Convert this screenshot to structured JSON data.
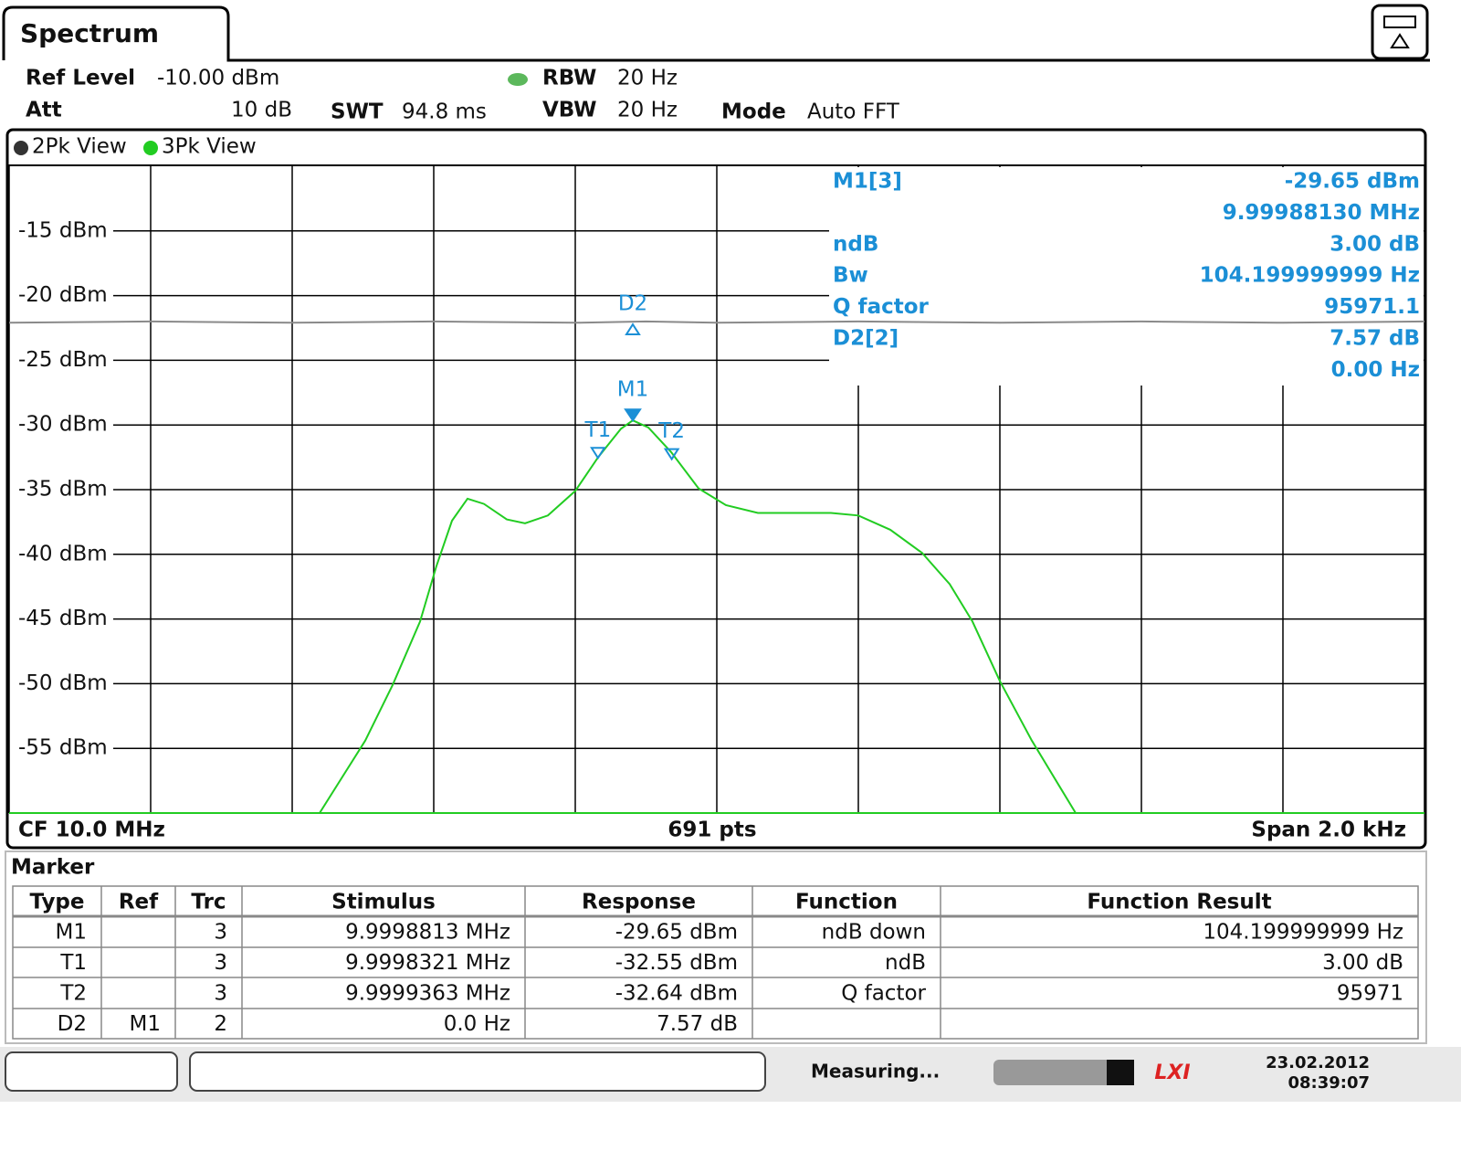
{
  "header": {
    "tab": "Spectrum"
  },
  "settings": [
    {
      "label": "Ref Level",
      "value": "-10.00 dBm"
    },
    {
      "label": "Att",
      "value": "10 dB"
    },
    {
      "label": "SWT",
      "value": "94.8 ms"
    },
    {
      "label": "RBW",
      "value": "20 Hz"
    },
    {
      "label": "VBW",
      "value": "20 Hz"
    },
    {
      "label": "Mode",
      "value": "Auto FFT"
    }
  ],
  "chart_data": {
    "type": "line",
    "series": [
      {
        "name": "2Pk View",
        "color": "#8a8a8a",
        "x": [
          9.999,
          9.9992,
          9.9994,
          9.9996,
          9.9998,
          9.9999,
          10.0,
          10.0002,
          10.0004,
          10.0006,
          10.0008,
          10.001
        ],
        "values": [
          -22.1,
          -22.0,
          -22.1,
          -22.0,
          -22.1,
          -22.0,
          -22.1,
          -22.0,
          -22.1,
          -22.0,
          -22.1,
          -22.0
        ]
      },
      {
        "name": "3Pk View",
        "color": "#22cc22",
        "x": [
          9.9994387,
          9.9995032,
          9.9995419,
          9.9995806,
          9.9996039,
          9.9996258,
          9.9996477,
          9.999671,
          9.9997032,
          9.999729,
          9.9997613,
          9.9998,
          9.9998323,
          9.9998645,
          9.9998813,
          9.9999032,
          9.9999355,
          9.9999742,
          10.0000129,
          10.0000581,
          10.0001097,
          10.0001613,
          10.0002,
          10.0002452,
          10.0002903,
          10.000329,
          10.0003613,
          10.0004,
          10.0004452,
          10.0004839,
          10.0005071
        ],
        "values": [
          -60,
          -54.4,
          -50.1,
          -45.2,
          -40.9,
          -37.4,
          -35.7,
          -36.1,
          -37.3,
          -37.6,
          -37.0,
          -35.1,
          -32.5,
          -30.3,
          -29.65,
          -30.2,
          -32.1,
          -34.9,
          -36.2,
          -36.8,
          -36.8,
          -36.8,
          -37.0,
          -38.1,
          -39.9,
          -42.3,
          -45.2,
          -49.8,
          -54.4,
          -57.9,
          -60
        ]
      }
    ],
    "markers": [
      {
        "name": "M1",
        "x": 9.9998813,
        "y": -29.65
      },
      {
        "name": "T1",
        "x": 9.9998321,
        "y": -32.55
      },
      {
        "name": "T2",
        "x": 9.9999363,
        "y": -32.64
      },
      {
        "name": "D2",
        "x": 9.9998813,
        "y": -22.08
      }
    ],
    "xlim": [
      9.999,
      10.001
    ],
    "xticks": [
      9.999,
      9.9992,
      9.9994,
      9.9996,
      9.9998,
      10.0,
      10.0002,
      10.0004,
      10.0006,
      10.0008,
      10.001
    ],
    "ylim": [
      -60,
      -10
    ],
    "yticks": [
      {
        "value": -15,
        "label": "-15 dBm"
      },
      {
        "value": -20,
        "label": "-20 dBm"
      },
      {
        "value": -25,
        "label": "-25 dBm"
      },
      {
        "value": -30,
        "label": "-30 dBm"
      },
      {
        "value": -35,
        "label": "-35 dBm"
      },
      {
        "value": -40,
        "label": "-40 dBm"
      },
      {
        "value": -45,
        "label": "-45 dBm"
      },
      {
        "value": -50,
        "label": "-50 dBm"
      },
      {
        "value": -55,
        "label": "-55 dBm"
      }
    ],
    "grid": true,
    "marker_info": [
      [
        "M1[3]",
        "-29.65 dBm"
      ],
      [
        null,
        "9.99988130 MHz"
      ],
      [
        "ndB",
        "3.00 dB"
      ],
      [
        "Bw",
        "104.199999999 Hz"
      ],
      [
        "Q factor",
        "95971.1"
      ],
      [
        "D2[2]",
        "7.57 dB"
      ],
      [
        null,
        "0.00 Hz"
      ]
    ],
    "footer": {
      "left": "CF 10.0 MHz",
      "center": "691 pts",
      "right": "Span 2.0 kHz"
    }
  },
  "table": {
    "title": "Marker",
    "headers": [
      "Type",
      "Ref",
      "Trc",
      "Stimulus",
      "Response",
      "Function",
      "Function Result"
    ],
    "rows": [
      [
        "M1",
        null,
        "3",
        "9.9998813 MHz",
        "-29.65 dBm",
        "ndB down",
        "104.199999999 Hz"
      ],
      [
        "T1",
        null,
        "3",
        "9.9998321 MHz",
        "-32.55 dBm",
        "ndB",
        "3.00 dB"
      ],
      [
        "T2",
        null,
        "3",
        "9.9999363 MHz",
        "-32.64 dBm",
        "Q factor",
        "95971"
      ],
      [
        "D2",
        "M1",
        "2",
        "0.0 Hz",
        "7.57 dB",
        null,
        null
      ]
    ]
  },
  "status": {
    "state": "Measuring...",
    "date": "23.02.2012",
    "time": "08:39:07"
  }
}
